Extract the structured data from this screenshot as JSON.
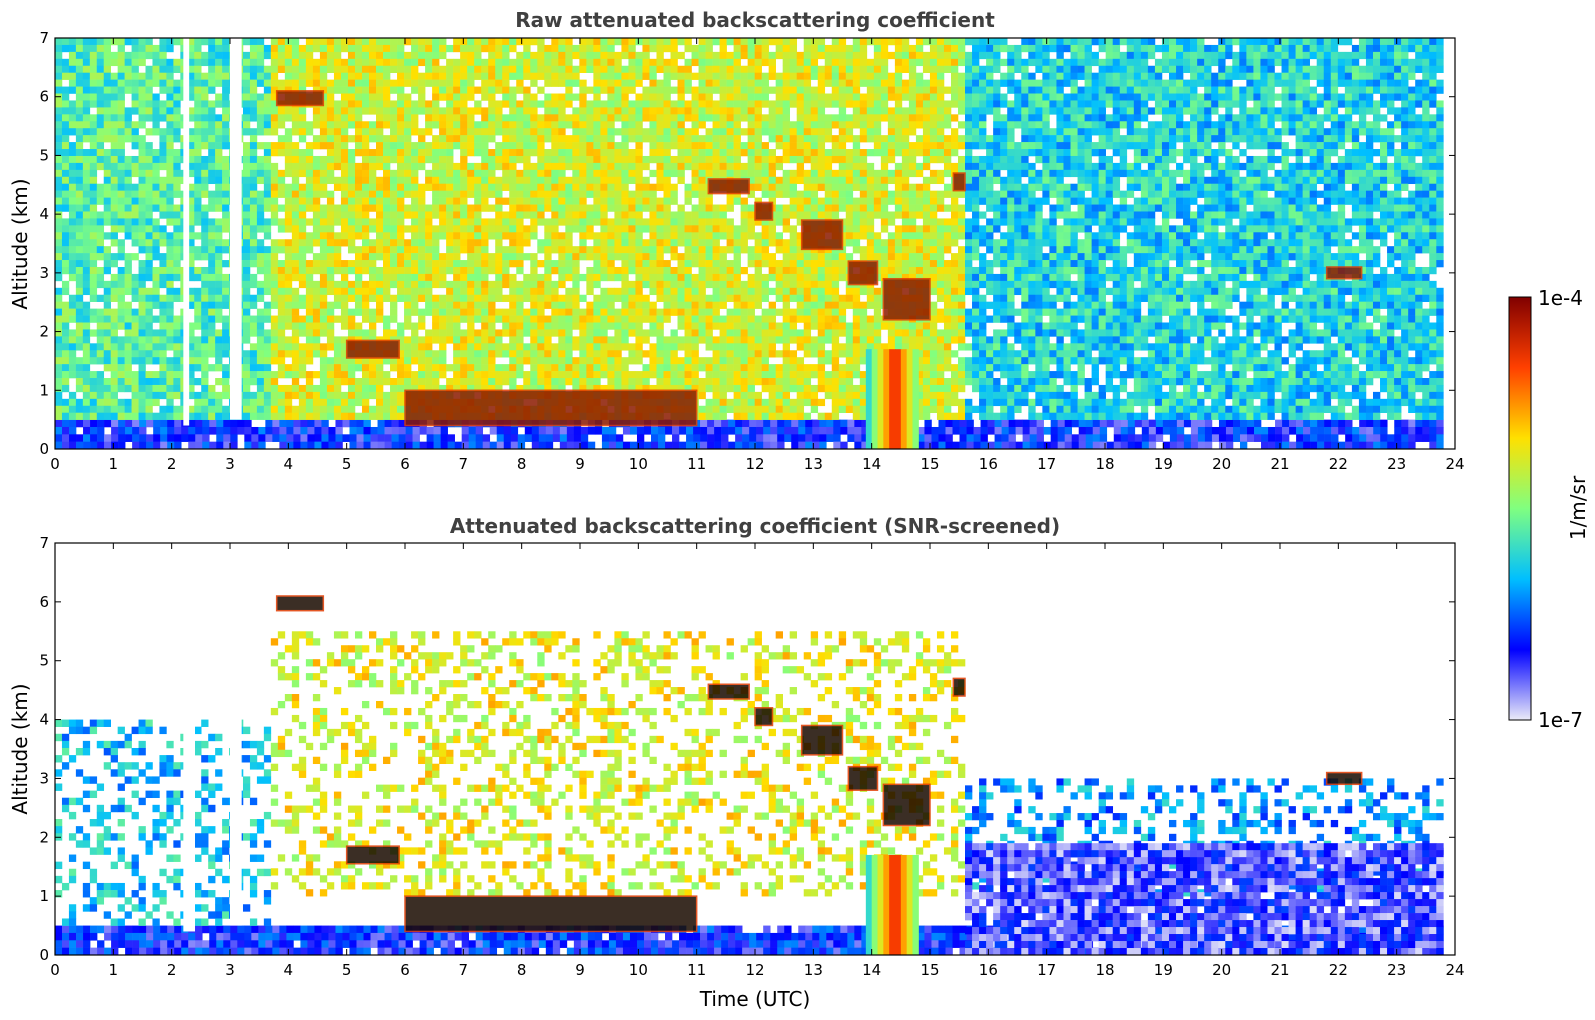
{
  "chart_data": [
    {
      "type": "heatmap",
      "title": "Raw attenuated backscattering coefficient",
      "xlabel": "",
      "ylabel": "Altitude (km)",
      "xlim": [
        0,
        24
      ],
      "ylim": [
        0,
        7
      ],
      "x_ticks": [
        0,
        1,
        2,
        3,
        4,
        5,
        6,
        7,
        8,
        9,
        10,
        11,
        12,
        13,
        14,
        15,
        16,
        17,
        18,
        19,
        20,
        21,
        22,
        23,
        24
      ],
      "y_ticks": [
        0,
        1,
        2,
        3,
        4,
        5,
        6,
        7
      ],
      "data_end_time": 23.8,
      "screened": false,
      "features": [
        {
          "kind": "surface_layer",
          "t": [
            0,
            23.8
          ],
          "z": [
            0,
            0.5
          ],
          "level": 0.18
        },
        {
          "kind": "noise_block",
          "t": [
            0,
            3.7
          ],
          "z": [
            0.5,
            7
          ],
          "level": 0.45
        },
        {
          "kind": "noise_block",
          "t": [
            3.7,
            15.6
          ],
          "z": [
            0.5,
            7
          ],
          "level": 0.6
        },
        {
          "kind": "noise_block",
          "t": [
            15.6,
            23.8
          ],
          "z": [
            0.5,
            7
          ],
          "level": 0.38
        },
        {
          "kind": "gap",
          "t": [
            3.0,
            3.2
          ],
          "z": [
            0.5,
            7
          ]
        },
        {
          "kind": "gap",
          "t": [
            2.2,
            2.3
          ],
          "z": [
            0.4,
            7
          ]
        },
        {
          "kind": "cloud",
          "t": [
            3.8,
            4.6
          ],
          "z": [
            5.85,
            6.1
          ]
        },
        {
          "kind": "cloud",
          "t": [
            11.2,
            11.9
          ],
          "z": [
            4.35,
            4.6
          ]
        },
        {
          "kind": "cloud",
          "t": [
            12.0,
            12.3
          ],
          "z": [
            3.9,
            4.2
          ]
        },
        {
          "kind": "cloud",
          "t": [
            12.8,
            13.5
          ],
          "z": [
            3.4,
            3.9
          ]
        },
        {
          "kind": "cloud",
          "t": [
            13.6,
            14.1
          ],
          "z": [
            2.8,
            3.2
          ]
        },
        {
          "kind": "cloud",
          "t": [
            14.2,
            15.0
          ],
          "z": [
            2.2,
            2.9
          ]
        },
        {
          "kind": "cloud",
          "t": [
            5.0,
            5.9
          ],
          "z": [
            1.55,
            1.85
          ]
        },
        {
          "kind": "cloud",
          "t": [
            6.0,
            11.0
          ],
          "z": [
            0.4,
            1.0
          ]
        },
        {
          "kind": "cloud",
          "t": [
            15.4,
            15.6
          ],
          "z": [
            4.4,
            4.7
          ]
        },
        {
          "kind": "cloud",
          "t": [
            21.8,
            22.4
          ],
          "z": [
            2.9,
            3.1
          ]
        },
        {
          "kind": "rain_shaft",
          "t": [
            13.9,
            14.8
          ],
          "z": [
            0,
            1.7
          ]
        }
      ]
    },
    {
      "type": "heatmap",
      "title": "Attenuated backscattering coefficient (SNR-screened)",
      "xlabel": "Time (UTC)",
      "ylabel": "Altitude (km)",
      "xlim": [
        0,
        24
      ],
      "ylim": [
        0,
        7
      ],
      "x_ticks": [
        0,
        1,
        2,
        3,
        4,
        5,
        6,
        7,
        8,
        9,
        10,
        11,
        12,
        13,
        14,
        15,
        16,
        17,
        18,
        19,
        20,
        21,
        22,
        23,
        24
      ],
      "y_ticks": [
        0,
        1,
        2,
        3,
        4,
        5,
        6,
        7
      ],
      "data_end_time": 23.8,
      "screened": true,
      "features": [
        {
          "kind": "surface_layer",
          "t": [
            0,
            23.8
          ],
          "z": [
            0,
            0.5
          ],
          "level": 0.18
        },
        {
          "kind": "aerosol_layer",
          "t": [
            0,
            3.7
          ],
          "z": [
            0.5,
            4.0
          ],
          "level": 0.35
        },
        {
          "kind": "aerosol_layer",
          "t": [
            3.7,
            15.6
          ],
          "z": [
            1.0,
            5.5
          ],
          "level": 0.62
        },
        {
          "kind": "aerosol_layer",
          "t": [
            15.6,
            23.8
          ],
          "z": [
            1.0,
            3.0
          ],
          "level": 0.3
        },
        {
          "kind": "boundary_layer",
          "t": [
            15.6,
            23.8
          ],
          "z": [
            0,
            1.9
          ],
          "level": 0.12
        },
        {
          "kind": "gap",
          "t": [
            2.2,
            2.4
          ],
          "z": [
            0.4,
            7
          ]
        },
        {
          "kind": "gap",
          "t": [
            3.0,
            3.2
          ],
          "z": [
            0.5,
            7
          ]
        },
        {
          "kind": "cloud",
          "t": [
            3.8,
            4.6
          ],
          "z": [
            5.85,
            6.1
          ]
        },
        {
          "kind": "cloud",
          "t": [
            11.2,
            11.9
          ],
          "z": [
            4.35,
            4.6
          ]
        },
        {
          "kind": "cloud",
          "t": [
            12.0,
            12.3
          ],
          "z": [
            3.9,
            4.2
          ]
        },
        {
          "kind": "cloud",
          "t": [
            12.8,
            13.5
          ],
          "z": [
            3.4,
            3.9
          ]
        },
        {
          "kind": "cloud",
          "t": [
            13.6,
            14.1
          ],
          "z": [
            2.8,
            3.2
          ]
        },
        {
          "kind": "cloud",
          "t": [
            14.2,
            15.0
          ],
          "z": [
            2.2,
            2.9
          ]
        },
        {
          "kind": "cloud",
          "t": [
            5.0,
            5.9
          ],
          "z": [
            1.55,
            1.85
          ]
        },
        {
          "kind": "cloud",
          "t": [
            6.0,
            11.0
          ],
          "z": [
            0.4,
            1.0
          ]
        },
        {
          "kind": "cloud",
          "t": [
            15.4,
            15.6
          ],
          "z": [
            4.4,
            4.7
          ]
        },
        {
          "kind": "cloud",
          "t": [
            21.8,
            22.4
          ],
          "z": [
            2.9,
            3.1
          ]
        },
        {
          "kind": "rain_shaft",
          "t": [
            13.9,
            14.8
          ],
          "z": [
            0,
            1.7
          ]
        }
      ]
    }
  ],
  "colorbar": {
    "label": "1/m/sr",
    "max_label": "1e-4",
    "min_label": "1e-7",
    "colormap": "jet",
    "colors": [
      "#ebebf8",
      "#0000ff",
      "#00bfff",
      "#80ff80",
      "#ffe000",
      "#ff4000",
      "#800000"
    ]
  },
  "colors": {
    "cloud_core": "#8b1a00",
    "cloud_edge": "#e03a00",
    "screened_cloud_core": "#1a0a00",
    "title": "#404040",
    "background": "#ffffff"
  }
}
